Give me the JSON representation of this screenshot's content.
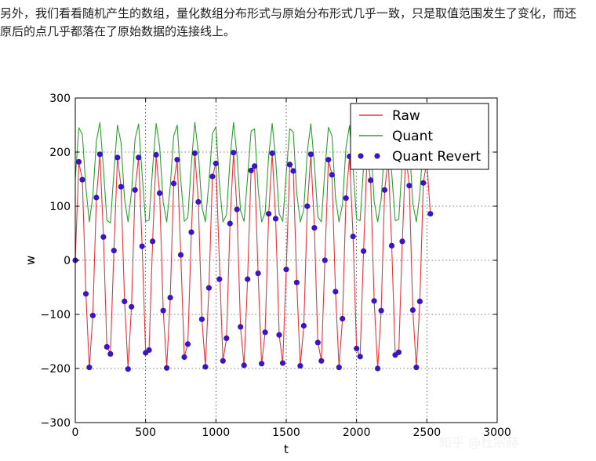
{
  "article": {
    "paragraph": "另外，我们看看随机产生的数组，量化数组分布形式与原始分布形式几乎一致，只是取值范围发生了变化，而还原后的点几乎都落在了原始数据的连接线上。"
  },
  "watermark": "知乎 @杜宗赫",
  "chart_data": {
    "type": "line",
    "title": "",
    "xlabel": "t",
    "ylabel": "w",
    "xlim": [
      0,
      3000
    ],
    "ylim": [
      -300,
      300
    ],
    "xticks": [
      0,
      500,
      1000,
      1500,
      2000,
      2500,
      3000
    ],
    "yticks": [
      -300,
      -200,
      -100,
      0,
      100,
      200,
      300
    ],
    "xtick_labels": [
      "0",
      "500",
      "1000",
      "1500",
      "2000",
      "2500",
      "3000"
    ],
    "ytick_labels": [
      "−300",
      "−200",
      "−100",
      "0",
      "100",
      "200",
      "300"
    ],
    "grid": true,
    "legend_position": "upper right",
    "x": [
      0,
      25,
      50,
      75,
      100,
      125,
      150,
      175,
      200,
      225,
      250,
      275,
      300,
      325,
      350,
      375,
      400,
      425,
      450,
      475,
      500,
      525,
      550,
      575,
      600,
      625,
      650,
      675,
      700,
      725,
      750,
      775,
      800,
      825,
      850,
      875,
      900,
      925,
      950,
      975,
      1000,
      1025,
      1050,
      1075,
      1100,
      1125,
      1150,
      1175,
      1200,
      1225,
      1250,
      1275,
      1300,
      1325,
      1350,
      1375,
      1400,
      1425,
      1450,
      1475,
      1500,
      1525,
      1550,
      1575,
      1600,
      1625,
      1650,
      1675,
      1700,
      1725,
      1750,
      1775,
      1800,
      1825,
      1850,
      1875,
      1900,
      1925,
      1950,
      1975,
      2000,
      2025,
      2050,
      2075,
      2100,
      2125,
      2150,
      2175,
      2200,
      2225,
      2250,
      2275,
      2300,
      2325,
      2350,
      2375,
      2400,
      2425,
      2450,
      2475,
      2500,
      2525
    ],
    "series": [
      {
        "name": "Raw",
        "color": "#e8343a",
        "style": "line",
        "values": [
          0,
          180,
          150,
          -60,
          -200,
          -100,
          115,
          196,
          45,
          -160,
          -172,
          20,
          190,
          137,
          -75,
          -200,
          -85,
          130,
          190,
          28,
          -170,
          -165,
          35,
          195,
          123,
          -92,
          -198,
          -69,
          143,
          186,
          11,
          -178,
          -155,
          52,
          198,
          108,
          -108,
          -196,
          -52,
          155,
          180,
          -6,
          -186,
          -145,
          68,
          199,
          93,
          -124,
          -194,
          -35,
          167,
          174,
          -24,
          -192,
          -133,
          85,
          198,
          77,
          -138,
          -190,
          -17,
          177,
          166,
          -41,
          -196,
          -121,
          100,
          196,
          60,
          -152,
          -185,
          0,
          186,
          158,
          -58,
          -198,
          -108,
          115,
          192,
          44,
          -164,
          -178,
          17,
          193,
          148,
          -75,
          -200,
          -93,
          130,
          188,
          27,
          -175,
          -170,
          35,
          197,
          138,
          -92,
          -198,
          -76,
          143,
          183,
          85
        ],
        "show_markers": false
      },
      {
        "name": "Quant",
        "color": "#2ca02c",
        "style": "line",
        "values": [
          150,
          245,
          233,
          134,
          71,
          119,
          220,
          255,
          169,
          74,
          69,
          164,
          250,
          218,
          113,
          71,
          126,
          224,
          252,
          159,
          72,
          74,
          170,
          253,
          210,
          107,
          71,
          137,
          230,
          250,
          148,
          72,
          79,
          179,
          255,
          200,
          99,
          71,
          144,
          234,
          247,
          141,
          71,
          84,
          186,
          255,
          194,
          92,
          72,
          153,
          239,
          243,
          132,
          71,
          88,
          193,
          253,
          186,
          86,
          72,
          159,
          243,
          237,
          124,
          71,
          94,
          202,
          252,
          178,
          80,
          71,
          167,
          246,
          230,
          116,
          71,
          103,
          209,
          249,
          170,
          76,
          73,
          173,
          250,
          224,
          109,
          71,
          113,
          214,
          246,
          161,
          73,
          76,
          183,
          253,
          218,
          105,
          71,
          123,
          222,
          244,
          194
        ],
        "show_markers": false
      },
      {
        "name": "Quant Revert",
        "color": "#3a16c0",
        "style": "markers",
        "values": [
          0,
          182,
          149,
          -62,
          -198,
          -102,
          116,
          196,
          43,
          -160,
          -173,
          18,
          190,
          136,
          -76,
          -201,
          -86,
          130,
          190,
          26,
          -171,
          -166,
          35,
          195,
          124,
          -93,
          -199,
          -69,
          142,
          186,
          10,
          -179,
          -155,
          52,
          198,
          108,
          -109,
          -197,
          -51,
          155,
          179,
          -35,
          -186,
          -144,
          68,
          199,
          94,
          -123,
          -194,
          -35,
          166,
          174,
          -24,
          -191,
          -133,
          86,
          198,
          77,
          -138,
          -190,
          -17,
          177,
          165,
          -41,
          -195,
          -121,
          100,
          196,
          60,
          -152,
          -186,
          0,
          186,
          158,
          -58,
          -198,
          -108,
          115,
          192,
          44,
          -163,
          -178,
          17,
          193,
          148,
          -75,
          -200,
          -93,
          130,
          188,
          27,
          -175,
          -170,
          35,
          197,
          138,
          -92,
          -198,
          -76,
          143,
          183,
          86
        ]
      }
    ]
  }
}
